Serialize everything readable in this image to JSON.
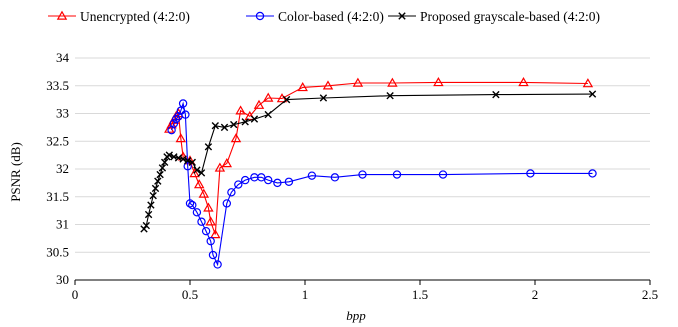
{
  "chart_data": {
    "type": "line",
    "title": "",
    "xlabel": "bpp",
    "ylabel": "PSNR (dB)",
    "xlim": [
      0,
      2.5
    ],
    "ylim": [
      30,
      34
    ],
    "xticks": [
      0,
      0.5,
      1,
      1.5,
      2,
      2.5
    ],
    "xtick_labels": [
      "0",
      "0.5",
      "1",
      "1.5",
      "2",
      "2.5"
    ],
    "yticks": [
      30,
      30.5,
      31,
      31.5,
      32,
      32.5,
      33,
      33.5,
      34
    ],
    "ytick_labels": [
      "30",
      "30.5",
      "31",
      "31.5",
      "32",
      "32.5",
      "33",
      "33.5",
      "34"
    ],
    "grid": "horizontal",
    "legend_position": "top",
    "series": [
      {
        "name": "Unencrypted (4:2:0)",
        "color": "#ff0000",
        "marker": "triangle",
        "points": [
          [
            0.41,
            32.72
          ],
          [
            0.42,
            32.8
          ],
          [
            0.43,
            32.88
          ],
          [
            0.44,
            32.95
          ],
          [
            0.45,
            33.0
          ],
          [
            0.46,
            32.55
          ],
          [
            0.47,
            32.22
          ],
          [
            0.5,
            32.15
          ],
          [
            0.52,
            31.92
          ],
          [
            0.54,
            31.72
          ],
          [
            0.56,
            31.55
          ],
          [
            0.58,
            31.3
          ],
          [
            0.59,
            31.05
          ],
          [
            0.61,
            30.82
          ],
          [
            0.63,
            32.02
          ],
          [
            0.66,
            32.1
          ],
          [
            0.7,
            32.55
          ],
          [
            0.72,
            33.05
          ],
          [
            0.76,
            32.95
          ],
          [
            0.8,
            33.15
          ],
          [
            0.84,
            33.28
          ],
          [
            0.9,
            33.27
          ],
          [
            0.99,
            33.47
          ],
          [
            1.1,
            33.5
          ],
          [
            1.23,
            33.55
          ],
          [
            1.38,
            33.55
          ],
          [
            1.58,
            33.56
          ],
          [
            1.95,
            33.56
          ],
          [
            2.23,
            33.54
          ]
        ]
      },
      {
        "name": "Color-based (4:2:0)",
        "color": "#0000ff",
        "marker": "circle",
        "points": [
          [
            0.42,
            32.7
          ],
          [
            0.43,
            32.82
          ],
          [
            0.44,
            32.9
          ],
          [
            0.45,
            32.95
          ],
          [
            0.46,
            33.05
          ],
          [
            0.47,
            33.18
          ],
          [
            0.48,
            32.98
          ],
          [
            0.49,
            32.05
          ],
          [
            0.5,
            31.38
          ],
          [
            0.51,
            31.35
          ],
          [
            0.53,
            31.22
          ],
          [
            0.55,
            31.05
          ],
          [
            0.57,
            30.88
          ],
          [
            0.59,
            30.7
          ],
          [
            0.6,
            30.45
          ],
          [
            0.62,
            30.28
          ],
          [
            0.66,
            31.38
          ],
          [
            0.68,
            31.58
          ],
          [
            0.71,
            31.72
          ],
          [
            0.74,
            31.8
          ],
          [
            0.78,
            31.85
          ],
          [
            0.81,
            31.85
          ],
          [
            0.84,
            31.8
          ],
          [
            0.88,
            31.75
          ],
          [
            0.93,
            31.77
          ],
          [
            1.03,
            31.88
          ],
          [
            1.13,
            31.85
          ],
          [
            1.25,
            31.9
          ],
          [
            1.4,
            31.9
          ],
          [
            1.6,
            31.9
          ],
          [
            1.98,
            31.92
          ],
          [
            2.25,
            31.92
          ]
        ]
      },
      {
        "name": "Proposed grayscale-based (4:2:0)",
        "color": "#000000",
        "marker": "x",
        "points": [
          [
            0.3,
            30.92
          ],
          [
            0.31,
            30.98
          ],
          [
            0.32,
            31.18
          ],
          [
            0.33,
            31.35
          ],
          [
            0.34,
            31.52
          ],
          [
            0.35,
            31.65
          ],
          [
            0.36,
            31.78
          ],
          [
            0.37,
            31.9
          ],
          [
            0.38,
            32.02
          ],
          [
            0.39,
            32.12
          ],
          [
            0.4,
            32.22
          ],
          [
            0.41,
            32.25
          ],
          [
            0.43,
            32.22
          ],
          [
            0.45,
            32.2
          ],
          [
            0.47,
            32.18
          ],
          [
            0.49,
            32.15
          ],
          [
            0.51,
            32.12
          ],
          [
            0.53,
            31.98
          ],
          [
            0.55,
            31.93
          ],
          [
            0.58,
            32.4
          ],
          [
            0.61,
            32.78
          ],
          [
            0.65,
            32.75
          ],
          [
            0.69,
            32.8
          ],
          [
            0.74,
            32.85
          ],
          [
            0.78,
            32.9
          ],
          [
            0.84,
            32.98
          ],
          [
            0.92,
            33.25
          ],
          [
            1.08,
            33.28
          ],
          [
            1.37,
            33.32
          ],
          [
            1.83,
            33.34
          ],
          [
            2.25,
            33.35
          ]
        ]
      }
    ]
  }
}
